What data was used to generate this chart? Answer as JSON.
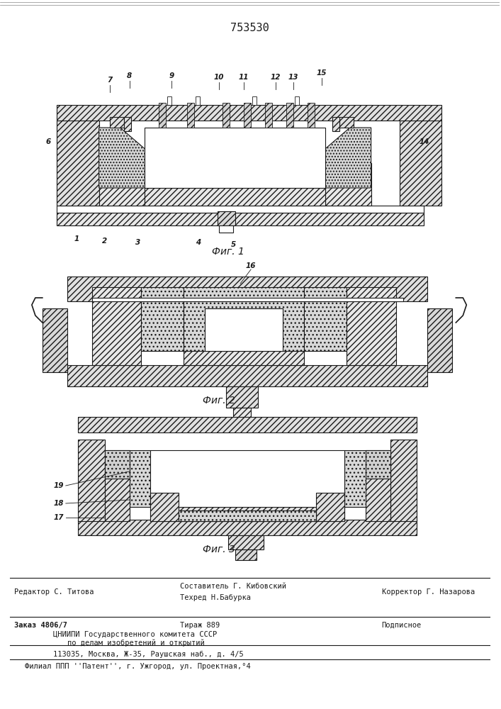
{
  "patent_number": "753530",
  "background_color": "#f5f5f0",
  "fig_bg": "#ffffff",
  "line_color": "#1a1a1a",
  "hatch_color": "#333333",
  "fig1_caption": "Фиг. 1",
  "fig2_caption": "Фиг. 2",
  "fig3_caption": "Фиг. 3",
  "labels_fig1_top": [
    "7",
    "8",
    "9",
    "10",
    "11",
    "12",
    "13",
    "15"
  ],
  "labels_fig1_left": [
    "6"
  ],
  "labels_fig1_right": [
    "14"
  ],
  "labels_fig1_bottom": [
    "1",
    "2",
    "3",
    "4",
    "5"
  ],
  "labels_fig2": [
    "16"
  ],
  "labels_fig3_left": [
    "17",
    "18",
    "19"
  ],
  "footer_line1_left": "Редактор С. Титова",
  "footer_line1_center": "Составитель Г. Кибовский\nТехред Н.Бабурка",
  "footer_line1_right": "Корректор Г. Назарова",
  "footer_line2_left": "Заказ 4806/7",
  "footer_line2_center": "Тираж 889",
  "footer_line2_right": "Подписное",
  "footer_line3": "ЦНИИПИ Государственного комитета СССР",
  "footer_line4": "по делам изобретений и открытий",
  "footer_line5": "113035, Москва, Ж-35, Раушская наб., д. 4/5",
  "footer_filial": "Филиал ППП ''Патент'', г. Ужгород, ул. Проектная,°4"
}
